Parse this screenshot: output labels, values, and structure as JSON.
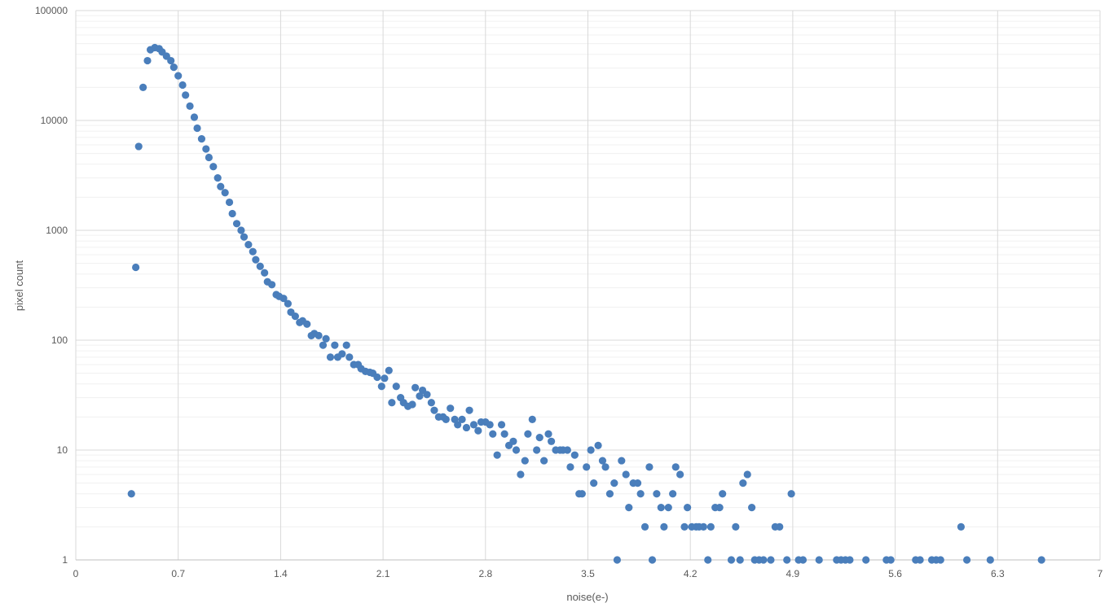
{
  "chart_data": {
    "type": "scatter",
    "xlabel": "noise(e-)",
    "ylabel": "pixel count",
    "xlim": [
      0,
      7
    ],
    "ylim": [
      1,
      100000
    ],
    "yscale": "log",
    "grid": true,
    "legend": "none",
    "marker_color": "#4a7ebb",
    "x_ticks": [
      "0",
      "0.7",
      "1.4",
      "2.1",
      "2.8",
      "3.5",
      "4.2",
      "4.9",
      "5.6",
      "6.3",
      "7"
    ],
    "y_ticks": [
      "1",
      "10",
      "100",
      "1000",
      "10000",
      "100000"
    ],
    "points": [
      [
        0.38,
        4
      ],
      [
        0.41,
        460
      ],
      [
        0.43,
        5800
      ],
      [
        0.46,
        20000
      ],
      [
        0.49,
        35000
      ],
      [
        0.51,
        44000
      ],
      [
        0.54,
        46000
      ],
      [
        0.57,
        45000
      ],
      [
        0.59,
        42000
      ],
      [
        0.62,
        38500
      ],
      [
        0.65,
        35000
      ],
      [
        0.67,
        30500
      ],
      [
        0.7,
        25500
      ],
      [
        0.73,
        21000
      ],
      [
        0.75,
        17000
      ],
      [
        0.78,
        13500
      ],
      [
        0.81,
        10700
      ],
      [
        0.83,
        8500
      ],
      [
        0.86,
        6800
      ],
      [
        0.89,
        5500
      ],
      [
        0.91,
        4600
      ],
      [
        0.94,
        3800
      ],
      [
        0.97,
        3000
      ],
      [
        0.99,
        2500
      ],
      [
        1.02,
        2200
      ],
      [
        1.05,
        1800
      ],
      [
        1.07,
        1420
      ],
      [
        1.1,
        1150
      ],
      [
        1.13,
        1000
      ],
      [
        1.15,
        870
      ],
      [
        1.18,
        740
      ],
      [
        1.21,
        640
      ],
      [
        1.23,
        540
      ],
      [
        1.26,
        470
      ],
      [
        1.29,
        410
      ],
      [
        1.31,
        340
      ],
      [
        1.34,
        320
      ],
      [
        1.37,
        260
      ],
      [
        1.39,
        250
      ],
      [
        1.42,
        240
      ],
      [
        1.45,
        215
      ],
      [
        1.47,
        180
      ],
      [
        1.5,
        165
      ],
      [
        1.53,
        145
      ],
      [
        1.55,
        150
      ],
      [
        1.58,
        140
      ],
      [
        1.61,
        110
      ],
      [
        1.63,
        115
      ],
      [
        1.66,
        110
      ],
      [
        1.69,
        90
      ],
      [
        1.71,
        103
      ],
      [
        1.74,
        70
      ],
      [
        1.77,
        90
      ],
      [
        1.79,
        70
      ],
      [
        1.82,
        75
      ],
      [
        1.85,
        90
      ],
      [
        1.87,
        70
      ],
      [
        1.9,
        60
      ],
      [
        1.93,
        60
      ],
      [
        1.95,
        55
      ],
      [
        1.98,
        52
      ],
      [
        2.01,
        51
      ],
      [
        2.03,
        50
      ],
      [
        2.06,
        46
      ],
      [
        2.09,
        38
      ],
      [
        2.11,
        45
      ],
      [
        2.14,
        53
      ],
      [
        2.16,
        27
      ],
      [
        2.19,
        38
      ],
      [
        2.22,
        30
      ],
      [
        2.24,
        27
      ],
      [
        2.27,
        25
      ],
      [
        2.3,
        26
      ],
      [
        2.32,
        37
      ],
      [
        2.35,
        31
      ],
      [
        2.37,
        35
      ],
      [
        2.4,
        32
      ],
      [
        2.43,
        27
      ],
      [
        2.45,
        23
      ],
      [
        2.48,
        20
      ],
      [
        2.51,
        20
      ],
      [
        2.53,
        19
      ],
      [
        2.56,
        24
      ],
      [
        2.59,
        19
      ],
      [
        2.61,
        17
      ],
      [
        2.64,
        19
      ],
      [
        2.67,
        16
      ],
      [
        2.69,
        23
      ],
      [
        2.72,
        17
      ],
      [
        2.75,
        15
      ],
      [
        2.77,
        18
      ],
      [
        2.8,
        18
      ],
      [
        2.83,
        17
      ],
      [
        2.85,
        14
      ],
      [
        2.88,
        9
      ],
      [
        2.91,
        17
      ],
      [
        2.93,
        14
      ],
      [
        2.96,
        11
      ],
      [
        2.99,
        12
      ],
      [
        3.01,
        10
      ],
      [
        3.04,
        6
      ],
      [
        3.07,
        8
      ],
      [
        3.09,
        14
      ],
      [
        3.12,
        19
      ],
      [
        3.15,
        10
      ],
      [
        3.17,
        13
      ],
      [
        3.2,
        8
      ],
      [
        3.23,
        14
      ],
      [
        3.25,
        12
      ],
      [
        3.28,
        10
      ],
      [
        3.31,
        10
      ],
      [
        3.33,
        10
      ],
      [
        3.36,
        10
      ],
      [
        3.38,
        7
      ],
      [
        3.41,
        9
      ],
      [
        3.44,
        4
      ],
      [
        3.46,
        4
      ],
      [
        3.49,
        7
      ],
      [
        3.52,
        10
      ],
      [
        3.54,
        5
      ],
      [
        3.57,
        11
      ],
      [
        3.6,
        8
      ],
      [
        3.62,
        7
      ],
      [
        3.65,
        4
      ],
      [
        3.68,
        5
      ],
      [
        3.7,
        1
      ],
      [
        3.73,
        8
      ],
      [
        3.76,
        6
      ],
      [
        3.78,
        3
      ],
      [
        3.81,
        5
      ],
      [
        3.84,
        5
      ],
      [
        3.86,
        4
      ],
      [
        3.89,
        2
      ],
      [
        3.92,
        7
      ],
      [
        3.94,
        1
      ],
      [
        3.97,
        4
      ],
      [
        4.0,
        3
      ],
      [
        4.02,
        2
      ],
      [
        4.05,
        3
      ],
      [
        4.08,
        4
      ],
      [
        4.1,
        7
      ],
      [
        4.13,
        6
      ],
      [
        4.16,
        2
      ],
      [
        4.18,
        3
      ],
      [
        4.21,
        2
      ],
      [
        4.24,
        2
      ],
      [
        4.26,
        2
      ],
      [
        4.29,
        2
      ],
      [
        4.32,
        1
      ],
      [
        4.34,
        2
      ],
      [
        4.37,
        3
      ],
      [
        4.4,
        3
      ],
      [
        4.42,
        4
      ],
      [
        4.48,
        1
      ],
      [
        4.51,
        2
      ],
      [
        4.54,
        1
      ],
      [
        4.56,
        5
      ],
      [
        4.59,
        6
      ],
      [
        4.62,
        3
      ],
      [
        4.64,
        1
      ],
      [
        4.67,
        1
      ],
      [
        4.7,
        1
      ],
      [
        4.75,
        1
      ],
      [
        4.78,
        2
      ],
      [
        4.81,
        2
      ],
      [
        4.86,
        1
      ],
      [
        4.89,
        4
      ],
      [
        4.94,
        1
      ],
      [
        4.97,
        1
      ],
      [
        5.08,
        1
      ],
      [
        5.2,
        1
      ],
      [
        5.23,
        1
      ],
      [
        5.26,
        1
      ],
      [
        5.29,
        1
      ],
      [
        5.4,
        1
      ],
      [
        5.54,
        1
      ],
      [
        5.57,
        1
      ],
      [
        5.74,
        1
      ],
      [
        5.77,
        1
      ],
      [
        5.85,
        1
      ],
      [
        5.88,
        1
      ],
      [
        5.91,
        1
      ],
      [
        6.05,
        2
      ],
      [
        6.09,
        1
      ],
      [
        6.25,
        1
      ],
      [
        6.6,
        1
      ]
    ]
  }
}
